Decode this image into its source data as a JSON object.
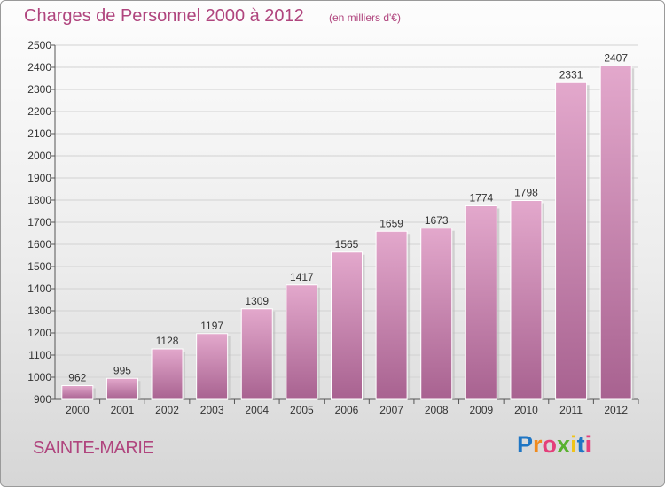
{
  "title": "Charges de Personnel 2000 à 2012",
  "subtitle": "(en milliers d'€)",
  "place": "SAINTE-MARIE",
  "logo": {
    "text": "Proxiti",
    "colors": [
      "#1f76c4",
      "#f08a1c",
      "#e43f7a",
      "#59b130",
      "#f0c419",
      "#1f76c4",
      "#e43f7a"
    ]
  },
  "colors": {
    "bar": "#c97aa6",
    "bar_light": "#e3a8cc",
    "bar_dark": "#a86290",
    "text": "#b0457e",
    "grid": "#d2d2d2"
  },
  "chart_data": {
    "type": "bar",
    "title": "Charges de Personnel 2000 à 2012",
    "subtitle": "(en milliers d'€)",
    "categories": [
      "2000",
      "2001",
      "2002",
      "2003",
      "2004",
      "2005",
      "2006",
      "2007",
      "2008",
      "2009",
      "2010",
      "2011",
      "2012"
    ],
    "values": [
      962,
      995,
      1128,
      1197,
      1309,
      1417,
      1565,
      1659,
      1673,
      1774,
      1798,
      2331,
      2407
    ],
    "ylim": [
      900,
      2500
    ],
    "yticks": [
      900,
      1000,
      1100,
      1200,
      1300,
      1400,
      1500,
      1600,
      1700,
      1800,
      1900,
      2000,
      2100,
      2200,
      2300,
      2400,
      2500
    ],
    "grid": true
  }
}
